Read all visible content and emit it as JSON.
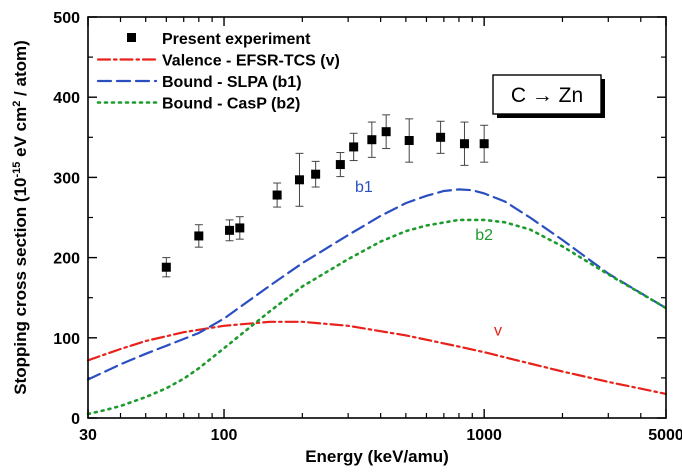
{
  "chart_data": {
    "type": "line",
    "title": "",
    "xlabel": "Energy (keV/amu)",
    "ylabel_parts": {
      "pre": "Stopping cross section (10",
      "exp1": "-15",
      "mid": " eV cm",
      "exp2": "2",
      "post": " / atom)"
    },
    "xscale": "log",
    "xlim": [
      30,
      5000
    ],
    "ylim": [
      0,
      500
    ],
    "xticks": [
      30,
      100,
      1000,
      5000
    ],
    "xtick_labels": [
      "30",
      "100",
      "1000",
      "5000"
    ],
    "yticks": [
      0,
      100,
      200,
      300,
      400,
      500
    ],
    "ytick_labels": [
      "0",
      "100",
      "200",
      "300",
      "400",
      "500"
    ],
    "annotation_box": "C → Zn",
    "legend_position": "top-left",
    "legend": [
      {
        "marker": "square",
        "label": "Present experiment",
        "color": "#000000"
      },
      {
        "marker": "dash-dot",
        "label": "Valence - EFSR-TCS  (v)",
        "color": "#e8221a"
      },
      {
        "marker": "dash",
        "label": "Bound - SLPA  (b1)",
        "color": "#2b4fc0"
      },
      {
        "marker": "dot",
        "label": "Bound - CasP   (b2)",
        "color": "#1e9b2e"
      }
    ],
    "series": [
      {
        "name": "Present experiment",
        "style": "markers",
        "color": "#000000",
        "points": [
          {
            "x": 60,
            "y": 188,
            "err": 12
          },
          {
            "x": 80,
            "y": 227,
            "err": 14
          },
          {
            "x": 105,
            "y": 234,
            "err": 13
          },
          {
            "x": 115,
            "y": 237,
            "err": 14
          },
          {
            "x": 160,
            "y": 278,
            "err": 15
          },
          {
            "x": 195,
            "y": 297,
            "err": 33
          },
          {
            "x": 225,
            "y": 304,
            "err": 16
          },
          {
            "x": 280,
            "y": 316,
            "err": 15
          },
          {
            "x": 315,
            "y": 338,
            "err": 17
          },
          {
            "x": 370,
            "y": 347,
            "err": 22
          },
          {
            "x": 420,
            "y": 357,
            "err": 21
          },
          {
            "x": 515,
            "y": 346,
            "err": 27
          },
          {
            "x": 680,
            "y": 350,
            "err": 20
          },
          {
            "x": 840,
            "y": 342,
            "err": 27
          },
          {
            "x": 1000,
            "y": 342,
            "err": 23
          }
        ]
      },
      {
        "name": "Valence - EFSR-TCS  (v)",
        "style": "dash-dot",
        "color": "#e8221a",
        "label_text": "v",
        "label_at": [
          1130,
          103
        ],
        "points": [
          [
            30,
            72
          ],
          [
            40,
            86
          ],
          [
            50,
            96
          ],
          [
            70,
            107
          ],
          [
            100,
            115
          ],
          [
            150,
            120
          ],
          [
            200,
            120
          ],
          [
            300,
            115
          ],
          [
            500,
            103
          ],
          [
            800,
            89
          ],
          [
            1000,
            82
          ],
          [
            1500,
            68
          ],
          [
            2000,
            58
          ],
          [
            3000,
            45
          ],
          [
            5000,
            30
          ]
        ]
      },
      {
        "name": "Bound - SLPA  (b1)",
        "style": "dash",
        "color": "#2b4fc0",
        "label_text": "b1",
        "label_at": [
          345,
          282
        ],
        "points": [
          [
            30,
            48
          ],
          [
            40,
            67
          ],
          [
            50,
            80
          ],
          [
            60,
            90
          ],
          [
            80,
            106
          ],
          [
            100,
            124
          ],
          [
            150,
            165
          ],
          [
            200,
            193
          ],
          [
            300,
            228
          ],
          [
            400,
            252
          ],
          [
            500,
            268
          ],
          [
            600,
            277
          ],
          [
            700,
            283
          ],
          [
            800,
            285
          ],
          [
            900,
            284
          ],
          [
            1000,
            280
          ],
          [
            1200,
            270
          ],
          [
            1500,
            250
          ],
          [
            2000,
            222
          ],
          [
            3000,
            180
          ],
          [
            5000,
            137
          ]
        ]
      },
      {
        "name": "Bound - CasP   (b2)",
        "style": "dot",
        "color": "#1e9b2e",
        "label_text": "b2",
        "label_at": [
          1000,
          222
        ],
        "points": [
          [
            30,
            5
          ],
          [
            35,
            10
          ],
          [
            40,
            15
          ],
          [
            50,
            26
          ],
          [
            60,
            37
          ],
          [
            70,
            49
          ],
          [
            80,
            62
          ],
          [
            100,
            87
          ],
          [
            150,
            133
          ],
          [
            200,
            164
          ],
          [
            300,
            198
          ],
          [
            400,
            220
          ],
          [
            500,
            233
          ],
          [
            600,
            240
          ],
          [
            800,
            247
          ],
          [
            1000,
            247
          ],
          [
            1200,
            244
          ],
          [
            1500,
            235
          ],
          [
            2000,
            214
          ],
          [
            3000,
            179
          ],
          [
            5000,
            137
          ]
        ]
      }
    ]
  }
}
